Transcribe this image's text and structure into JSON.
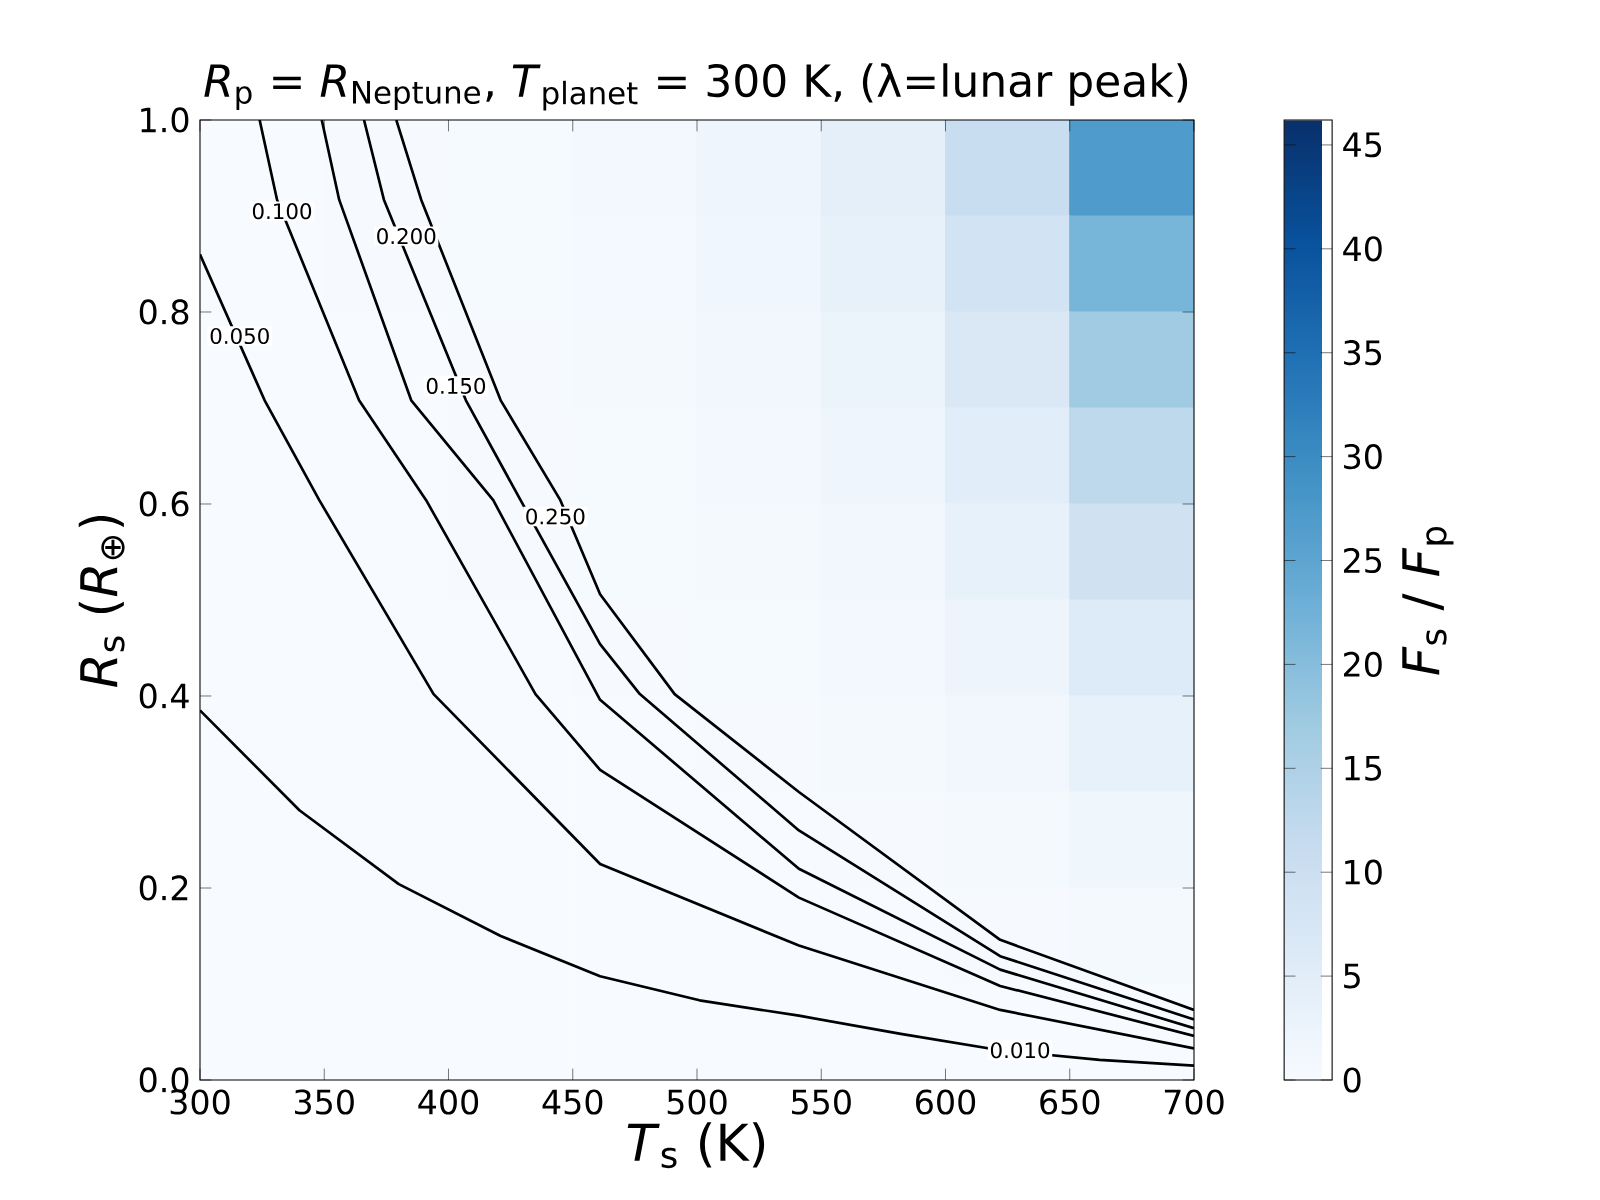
{
  "chart_data": {
    "type": "heatmap",
    "title": "*R*$_{p}$ = *R*$_{Neptune}$, *T*$_{planet}$ = 300 K, (λ=lunar peak)",
    "xlabel": "*T*$_{s}$ (K)",
    "ylabel": "*R*$_{s}$ (*R*$_{⊕}$)",
    "clabel": "*F*$_{s}$ / *F*$_{p}$",
    "cells": [
      [
        0.1,
        0.2,
        0.5,
        1.1,
        2.1,
        4.5,
        10.8,
        27.1
      ],
      [
        0.1,
        0.2,
        0.4,
        0.9,
        1.7,
        3.6,
        8.7,
        21.7
      ],
      [
        0.1,
        0.1,
        0.3,
        0.7,
        1.3,
        2.8,
        6.8,
        16.9
      ],
      [
        0.1,
        0.1,
        0.3,
        0.5,
        1.0,
        2.1,
        5.1,
        12.7
      ],
      [
        0.0,
        0.1,
        0.2,
        0.4,
        0.7,
        1.5,
        3.6,
        9.1
      ],
      [
        0.0,
        0.1,
        0.1,
        0.2,
        0.5,
        1.0,
        2.4,
        6.1
      ],
      [
        0.0,
        0.0,
        0.1,
        0.1,
        0.3,
        0.6,
        1.5,
        3.7
      ],
      [
        0.0,
        0.0,
        0.0,
        0.1,
        0.1,
        0.3,
        0.8,
        1.9
      ],
      [
        0.0,
        0.0,
        0.0,
        0.0,
        0.1,
        0.1,
        0.3,
        0.7
      ],
      [
        0.0,
        0.0,
        0.0,
        0.0,
        0.0,
        0.0,
        0.0,
        0.1
      ]
    ],
    "clim": [
      0,
      46.2
    ],
    "cticks": [
      0,
      5,
      10,
      15,
      20,
      25,
      30,
      35,
      40,
      45
    ],
    "xlim": [
      300,
      700
    ],
    "xticks": [
      300,
      350,
      400,
      450,
      500,
      550,
      600,
      650,
      700
    ],
    "ylim": [
      0,
      1.0
    ],
    "yticks": [
      {
        "value": 0,
        "label": "0.0"
      },
      {
        "value": 0.2,
        "label": "0.2"
      },
      {
        "value": 0.4,
        "label": "0.4"
      },
      {
        "value": 0.6,
        "label": "0.6"
      },
      {
        "value": 0.8,
        "label": "0.8"
      },
      {
        "value": 1.0,
        "label": "1.0"
      }
    ],
    "series": [
      {
        "type": "line",
        "color": "#000000",
        "x": [
          300,
          340,
          380,
          421,
          461,
          501,
          541,
          582,
          622,
          662,
          700
        ],
        "values": [
          0.385,
          0.281,
          0.204,
          0.15,
          0.108,
          0.083,
          0.067,
          0.048,
          0.031,
          0.021,
          0.015
        ]
      },
      {
        "type": "line",
        "color": "#000000",
        "x": [
          300,
          326,
          348,
          394,
          461,
          541,
          622,
          700
        ],
        "values": [
          0.86,
          0.708,
          0.604,
          0.402,
          0.225,
          0.14,
          0.073,
          0.033
        ]
      },
      {
        "type": "line",
        "color": "#000000",
        "x": [
          324,
          331,
          364,
          391,
          435,
          461,
          541,
          622,
          700
        ],
        "values": [
          1.0,
          0.917,
          0.708,
          0.604,
          0.402,
          0.323,
          0.19,
          0.098,
          0.046
        ]
      },
      {
        "type": "line",
        "color": "#000000",
        "x": [
          349,
          356,
          385,
          418,
          461,
          541,
          622,
          700
        ],
        "values": [
          1.0,
          0.917,
          0.708,
          0.604,
          0.396,
          0.22,
          0.115,
          0.054
        ]
      },
      {
        "type": "line",
        "color": "#000000",
        "x": [
          366,
          374,
          407,
          429,
          461,
          477,
          541,
          622,
          700
        ],
        "values": [
          1.0,
          0.917,
          0.708,
          0.604,
          0.454,
          0.402,
          0.26,
          0.129,
          0.063
        ]
      },
      {
        "type": "line",
        "color": "#000000",
        "x": [
          379,
          389,
          421,
          445,
          461,
          491,
          541,
          622,
          700
        ],
        "values": [
          1.0,
          0.917,
          0.708,
          0.604,
          0.506,
          0.402,
          0.3,
          0.146,
          0.073
        ]
      }
    ],
    "annotations": [
      {
        "text": "0.010",
        "x": 630,
        "y": 0.031
      },
      {
        "text": "0.050",
        "x": 316,
        "y": 0.775
      },
      {
        "text": "0.100",
        "x": 333,
        "y": 0.905
      },
      {
        "text": "0.150",
        "x": 403,
        "y": 0.723
      },
      {
        "text": "0.200",
        "x": 383,
        "y": 0.879
      },
      {
        "text": "0.250",
        "x": 443,
        "y": 0.587
      }
    ]
  }
}
